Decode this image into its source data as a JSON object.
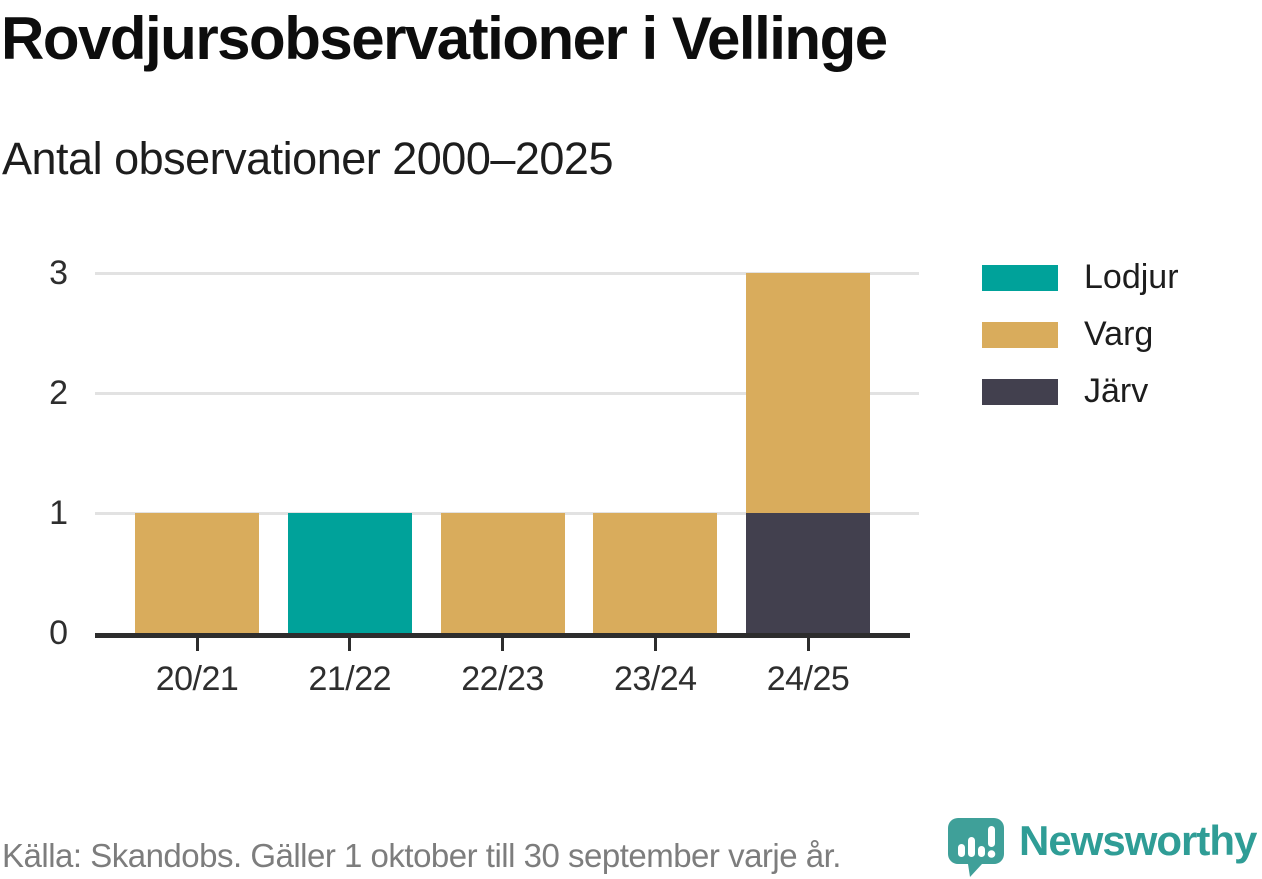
{
  "header": {
    "title": "Rovdjursobservationer i Vellinge",
    "subtitle": "Antal observationer 2000–2025"
  },
  "chart_data": {
    "type": "bar",
    "stacked": true,
    "title": "Rovdjursobservationer i Vellinge",
    "subtitle": "Antal observationer 2000–2025",
    "categories": [
      "20/21",
      "21/22",
      "22/23",
      "23/24",
      "24/25"
    ],
    "series": [
      {
        "name": "Lodjur",
        "color": "#00a29a",
        "values": [
          0,
          1,
          0,
          0,
          0
        ]
      },
      {
        "name": "Varg",
        "color": "#d9ac5c",
        "values": [
          1,
          0,
          1,
          1,
          2
        ]
      },
      {
        "name": "Järv",
        "color": "#42404e",
        "values": [
          0,
          0,
          0,
          0,
          1
        ]
      }
    ],
    "stack_order_bottom_to_top": [
      "Järv",
      "Varg",
      "Lodjur"
    ],
    "totals_per_category": [
      1,
      1,
      1,
      1,
      3
    ],
    "xlabel": "",
    "ylabel": "",
    "ylim": [
      0,
      3
    ],
    "yticks": [
      0,
      1,
      2,
      3
    ],
    "grid": "horizontal",
    "legend_position": "right"
  },
  "footer": {
    "source": "Källa: Skandobs. Gäller 1 oktober till 30 september varje år.",
    "brand": "Newsworthy"
  },
  "colors": {
    "lodjur": "#00a29a",
    "varg": "#d9ac5c",
    "jarv": "#42404e",
    "gridline": "#e2e2e2",
    "axis": "#2d2d2d",
    "source_text": "#7d7d7d",
    "brand_icon": "#3fa099",
    "brand_text": "#2f9d96"
  }
}
